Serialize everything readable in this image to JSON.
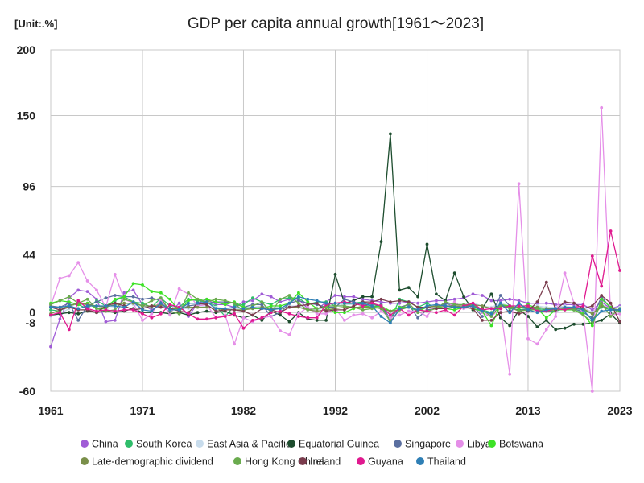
{
  "chart_data": {
    "type": "line",
    "title": "GDP per capita annual growth[1961～2023]",
    "unit_label": "[Unit:.%]",
    "x_range": [
      1961,
      2023
    ],
    "x_ticks": [
      1961,
      1971,
      1982,
      1992,
      2002,
      2013,
      2023
    ],
    "ylim": [
      -60,
      200
    ],
    "y_ticks": [
      -60,
      -8,
      0,
      44,
      96,
      150,
      200
    ],
    "grid": true,
    "legend_position": "bottom",
    "series": [
      {
        "name": "China",
        "color": "#a05cd6",
        "values": [
          -26,
          -5,
          11,
          17,
          16,
          10,
          -7,
          -6,
          15,
          17,
          6,
          2,
          6,
          0,
          7,
          -3,
          7,
          10,
          6,
          6,
          4,
          8,
          9,
          14,
          12,
          8,
          10,
          10,
          3,
          2,
          8,
          13,
          12,
          12,
          10,
          9,
          8,
          7,
          7,
          8,
          7,
          8,
          9,
          9,
          10,
          11,
          14,
          13,
          9,
          9,
          10,
          9,
          7,
          7,
          7,
          6,
          6,
          6,
          6,
          2,
          8,
          3,
          5
        ]
      },
      {
        "name": "South Korea",
        "color": "#2fbd6a",
        "values": [
          2,
          1,
          6,
          6,
          3,
          9,
          5,
          9,
          12,
          8,
          7,
          4,
          11,
          5,
          4,
          10,
          9,
          8,
          5,
          -3,
          5,
          6,
          11,
          8,
          6,
          10,
          11,
          11,
          6,
          8,
          8,
          5,
          6,
          7,
          8,
          6,
          5,
          -6,
          10,
          8,
          4,
          7,
          3,
          5,
          4,
          5,
          5,
          2,
          0,
          6,
          3,
          2,
          3,
          3,
          2,
          2,
          3,
          2,
          2,
          -1,
          4,
          2,
          1
        ]
      },
      {
        "name": "East Asia & Pacific",
        "color": "#c8dcec",
        "values": [
          -3,
          -1,
          3,
          8,
          5,
          5,
          3,
          4,
          7,
          6,
          4,
          5,
          6,
          2,
          3,
          3,
          4,
          5,
          4,
          3,
          3,
          3,
          4,
          5,
          4,
          4,
          5,
          5,
          2,
          2,
          4,
          5,
          6,
          6,
          6,
          5,
          4,
          0,
          4,
          5,
          2,
          5,
          5,
          6,
          6,
          6,
          7,
          5,
          4,
          7,
          5,
          5,
          5,
          5,
          4,
          4,
          5,
          4,
          4,
          0,
          6,
          3,
          4
        ]
      },
      {
        "name": "Equatorial Guinea",
        "color": "#1d4d2e",
        "values": [
          -2,
          -1,
          0,
          -1,
          1,
          0,
          1,
          0,
          1,
          3,
          0,
          0,
          0,
          -1,
          0,
          -2,
          0,
          1,
          0,
          1,
          -2,
          -4,
          -2,
          -6,
          1,
          -2,
          -7,
          0,
          -5,
          -6,
          -6,
          29,
          7,
          9,
          12,
          12,
          54,
          136,
          17,
          19,
          12,
          52,
          14,
          9,
          30,
          12,
          2,
          3,
          14,
          -4,
          -10,
          2,
          -3,
          -11,
          -6,
          -13,
          -12,
          -9,
          -9,
          -8,
          -6,
          -1,
          -8
        ]
      },
      {
        "name": "Singapore",
        "color": "#5a6fa0",
        "values": [
          5,
          4,
          7,
          -6,
          5,
          8,
          11,
          13,
          12,
          12,
          10,
          11,
          9,
          2,
          2,
          5,
          6,
          7,
          8,
          8,
          7,
          4,
          6,
          6,
          -3,
          0,
          7,
          9,
          7,
          6,
          4,
          4,
          10,
          8,
          6,
          4,
          6,
          -5,
          4,
          6,
          -4,
          2,
          3,
          7,
          5,
          5,
          5,
          -3,
          -2,
          13,
          5,
          1,
          3,
          2,
          1,
          1,
          3,
          3,
          0,
          -4,
          12,
          3,
          1
        ]
      },
      {
        "name": "Libya",
        "color": "#e58fe8",
        "values": [
          5,
          26,
          28,
          38,
          24,
          17,
          4,
          29,
          10,
          7,
          -6,
          -1,
          10,
          -2,
          18,
          14,
          5,
          6,
          -4,
          -2,
          -24,
          -4,
          -7,
          -4,
          -3,
          -14,
          -17,
          -1,
          4,
          -1,
          -1,
          3,
          -6,
          -2,
          -1,
          -4,
          1,
          -4,
          -2,
          1,
          1,
          -3,
          7,
          3,
          8,
          3,
          4,
          0,
          -3,
          3,
          -47,
          98,
          -20,
          -24,
          -13,
          -3,
          30,
          7,
          0,
          -60,
          156,
          -2,
          -1
        ]
      },
      {
        "name": "Botswana",
        "color": "#3de226",
        "values": [
          7,
          9,
          8,
          6,
          7,
          3,
          3,
          10,
          12,
          22,
          21,
          16,
          15,
          10,
          1,
          9,
          10,
          10,
          8,
          6,
          8,
          4,
          3,
          3,
          5,
          5,
          7,
          15,
          8,
          3,
          4,
          0,
          0,
          3,
          5,
          4,
          5,
          1,
          4,
          4,
          1,
          4,
          5,
          3,
          2,
          4,
          3,
          1,
          -10,
          6,
          5,
          3,
          6,
          3,
          -4,
          2,
          2,
          2,
          -1,
          -10,
          10,
          4,
          1
        ]
      },
      {
        "name": "Late-demographic dividend",
        "color": "#7a8f4a",
        "values": [
          -1,
          2,
          5,
          7,
          6,
          5,
          4,
          6,
          7,
          7,
          5,
          5,
          6,
          3,
          3,
          4,
          4,
          4,
          3,
          2,
          2,
          2,
          3,
          4,
          3,
          3,
          4,
          4,
          2,
          1,
          2,
          3,
          4,
          4,
          4,
          4,
          3,
          1,
          2,
          4,
          2,
          4,
          5,
          5,
          5,
          5,
          6,
          5,
          3,
          5,
          4,
          4,
          4,
          4,
          3,
          3,
          4,
          3,
          3,
          -1,
          5,
          3,
          2
        ]
      },
      {
        "name": "Hong Kong China",
        "color": "#6aab4e",
        "values": [
          6,
          9,
          12,
          7,
          10,
          3,
          1,
          2,
          10,
          8,
          5,
          9,
          11,
          1,
          -1,
          15,
          10,
          8,
          10,
          9,
          7,
          1,
          5,
          8,
          0,
          10,
          13,
          7,
          2,
          3,
          5,
          5,
          5,
          4,
          2,
          3,
          4,
          -7,
          2,
          7,
          0,
          1,
          3,
          8,
          6,
          6,
          6,
          2,
          -3,
          6,
          4,
          1,
          2,
          2,
          1,
          2,
          3,
          2,
          -2,
          -7,
          7,
          -3,
          3
        ]
      },
      {
        "name": "Ireland",
        "color": "#7a3c4d",
        "values": [
          4,
          2,
          4,
          2,
          2,
          0,
          5,
          7,
          5,
          2,
          3,
          5,
          4,
          3,
          1,
          0,
          7,
          6,
          1,
          2,
          2,
          1,
          -2,
          3,
          2,
          0,
          4,
          5,
          6,
          7,
          1,
          2,
          2,
          5,
          8,
          8,
          10,
          8,
          9,
          8,
          4,
          4,
          3,
          3,
          4,
          4,
          3,
          -6,
          -6,
          0,
          1,
          -1,
          1,
          8,
          23,
          2,
          8,
          7,
          3,
          5,
          13,
          7,
          -7
        ]
      },
      {
        "name": "Guyana",
        "color": "#e0198f",
        "values": [
          -2,
          0,
          -13,
          9,
          3,
          1,
          2,
          1,
          2,
          2,
          -1,
          -4,
          -1,
          6,
          4,
          -1,
          -5,
          -5,
          -4,
          -3,
          -1,
          -12,
          -6,
          -4,
          0,
          1,
          -1,
          -3,
          -4,
          -4,
          6,
          7,
          8,
          7,
          5,
          7,
          5,
          -2,
          3,
          -2,
          2,
          1,
          0,
          2,
          -2,
          5,
          7,
          2,
          3,
          3,
          5,
          5,
          5,
          1,
          1,
          3,
          2,
          4,
          5,
          43,
          20,
          62,
          32
        ]
      },
      {
        "name": "Thailand",
        "color": "#2f7fb5",
        "values": [
          4,
          4,
          5,
          3,
          5,
          5,
          5,
          5,
          4,
          8,
          2,
          1,
          7,
          2,
          2,
          7,
          7,
          8,
          3,
          3,
          4,
          3,
          4,
          3,
          2,
          3,
          7,
          12,
          10,
          9,
          7,
          7,
          7,
          7,
          7,
          5,
          -3,
          -8,
          3,
          4,
          2,
          5,
          6,
          5,
          4,
          4,
          5,
          1,
          -1,
          7,
          0,
          7,
          2,
          0,
          2,
          3,
          4,
          4,
          2,
          -6,
          1,
          2,
          2
        ]
      }
    ]
  }
}
